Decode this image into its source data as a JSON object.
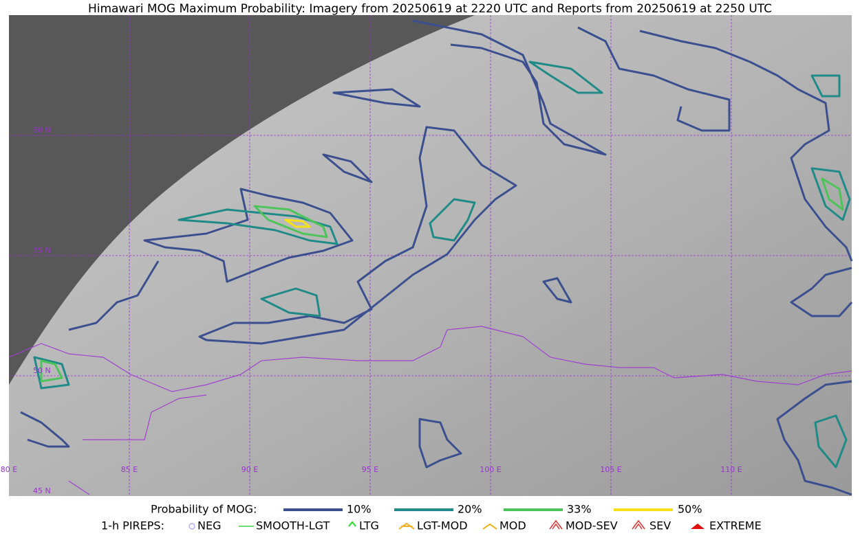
{
  "title": "Himawari MOG Maximum Probability: Imagery from 20250619 at 2220 UTC and Reports from 20250619 at 2250 UTC",
  "map": {
    "lat_labels": [
      "60 N",
      "55 N",
      "50 N",
      "45 N"
    ],
    "lon_labels": [
      "80 E",
      "85 E",
      "90 E",
      "95 E",
      "100 E",
      "105 E",
      "110 E"
    ]
  },
  "legend": {
    "probability_title": "Probability of MOG:",
    "probability_levels": [
      "10%",
      "20%",
      "33%",
      "50%"
    ],
    "pireps_title": "1-h PIREPS:",
    "pireps": [
      "NEG",
      "SMOOTH-LGT",
      "LTG",
      "LGT-MOD",
      "MOD",
      "MOD-SEV",
      "SEV",
      "EXTREME"
    ]
  }
}
